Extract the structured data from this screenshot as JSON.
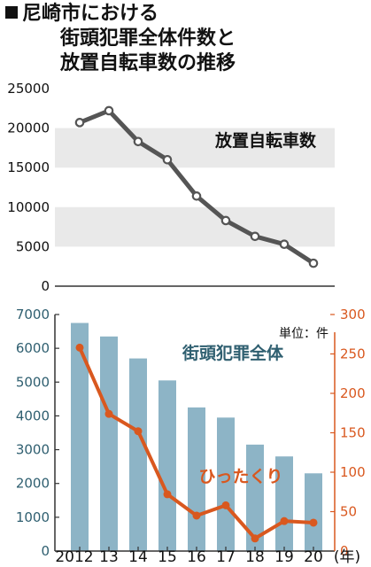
{
  "title_lines": [
    "尼崎市における",
    "街頭犯罪全体件数と",
    "放置自転車数の推移"
  ],
  "unit_label": "単位：件",
  "x_labels": [
    "2012",
    "13",
    "14",
    "15",
    "16",
    "17",
    "18",
    "19",
    "20"
  ],
  "x_unit": "(年)",
  "colors": {
    "bar": "#8db4c6",
    "line_top": "#555555",
    "line_bottom": "#d9581f",
    "teal_text": "#2f5f70",
    "orange_text": "#d9581f",
    "band": "#e9e9e9"
  },
  "chart_data": [
    {
      "type": "line",
      "x": [
        "2012",
        "13",
        "14",
        "15",
        "16",
        "17",
        "18",
        "19",
        "20"
      ],
      "series": [
        {
          "name": "放置自転車数",
          "values": [
            20700,
            22200,
            18300,
            16000,
            11400,
            8300,
            6300,
            5300,
            2900
          ]
        }
      ],
      "ylim": [
        0,
        25000
      ],
      "yticks": [
        0,
        5000,
        10000,
        15000,
        20000,
        25000
      ],
      "grid": "alternating-bands"
    },
    {
      "type": "bar",
      "x": [
        "2012",
        "13",
        "14",
        "15",
        "16",
        "17",
        "18",
        "19",
        "20"
      ],
      "series": [
        {
          "name": "街頭犯罪全体",
          "axis": "left",
          "values": [
            6750,
            6350,
            5700,
            5050,
            4250,
            3950,
            3150,
            2800,
            2300
          ]
        },
        {
          "name": "ひったくり",
          "axis": "right",
          "type": "line",
          "values": [
            258,
            174,
            152,
            72,
            45,
            58,
            16,
            38,
            36
          ]
        }
      ],
      "ylim_left": [
        0,
        7000
      ],
      "yticks_left": [
        0,
        1000,
        2000,
        3000,
        4000,
        5000,
        6000,
        7000
      ],
      "ylim_right": [
        0,
        300
      ],
      "yticks_right": [
        0,
        50,
        100,
        150,
        200,
        250,
        300
      ]
    }
  ]
}
